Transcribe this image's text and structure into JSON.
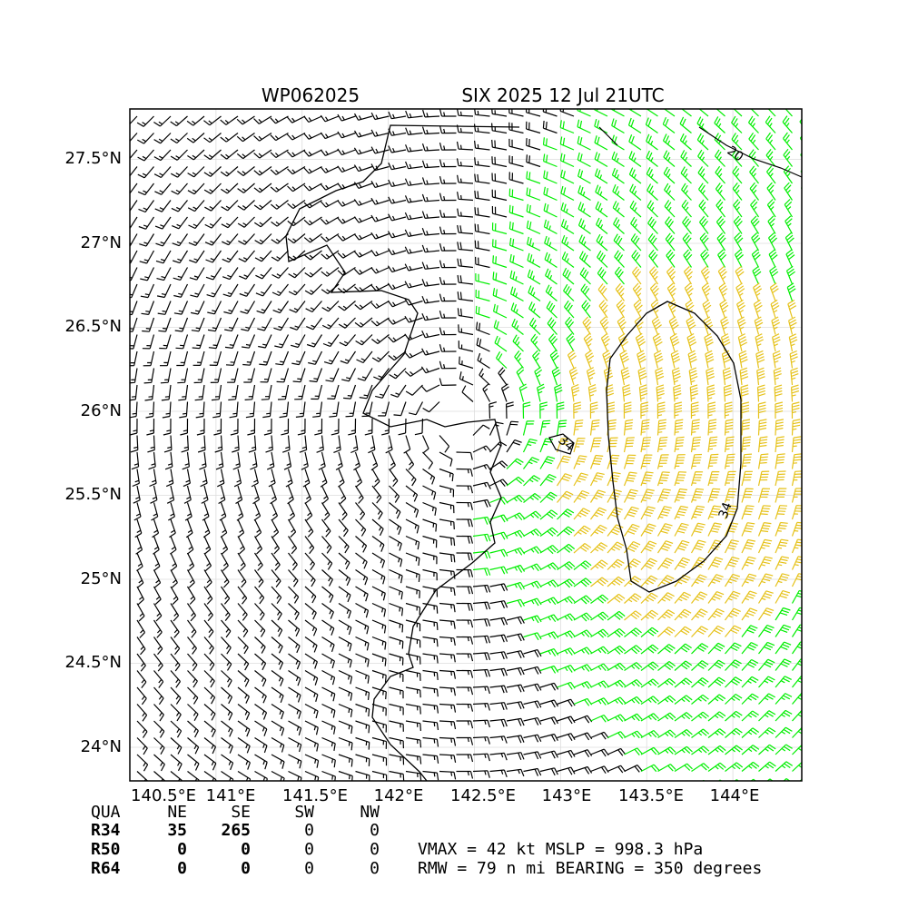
{
  "title_left": "WP062025",
  "title_right": "SIX 2025 12 Jul 21UTC",
  "colors": {
    "calm": "#000000",
    "r34": "#00ee00",
    "r50": "#e6c21a",
    "frame": "#000000",
    "grid": "#dddddd"
  },
  "chart_data": {
    "type": "wind-barb-map",
    "x_ticks": [
      "140.5°E",
      "141°E",
      "141.5°E",
      "142°E",
      "142.5°E",
      "143°E",
      "143.5°E",
      "144°E"
    ],
    "x_tick_values": [
      140.5,
      141.0,
      141.5,
      142.0,
      142.5,
      143.0,
      143.5,
      144.0
    ],
    "y_ticks": [
      "27.5°N",
      "27°N",
      "26.5°N",
      "26°N",
      "25.5°N",
      "25°N",
      "24.5°N",
      "24°N"
    ],
    "y_tick_values": [
      27.5,
      27.0,
      26.5,
      26.0,
      25.5,
      25.0,
      24.5,
      24.0
    ],
    "lon_range": [
      140.5,
      144.4
    ],
    "lat_range": [
      23.8,
      27.8
    ],
    "storm_center": [
      142.4,
      25.95
    ],
    "vmax_kt": 42,
    "contour_labels": [
      "34",
      "34",
      "20"
    ]
  },
  "table": {
    "header": [
      "QUA",
      "NE",
      "SE",
      "SW",
      "NW"
    ],
    "rows": [
      [
        "R34",
        "35",
        "265",
        "0",
        "0"
      ],
      [
        "R50",
        "0",
        "0",
        "0",
        "0"
      ],
      [
        "R64",
        "0",
        "0",
        "0",
        "0"
      ]
    ]
  },
  "info": {
    "line1": "VMAX =  42 kt MSLP = 998.3 hPa",
    "line2": "RMW =  79 n mi BEARING = 350 degrees"
  }
}
